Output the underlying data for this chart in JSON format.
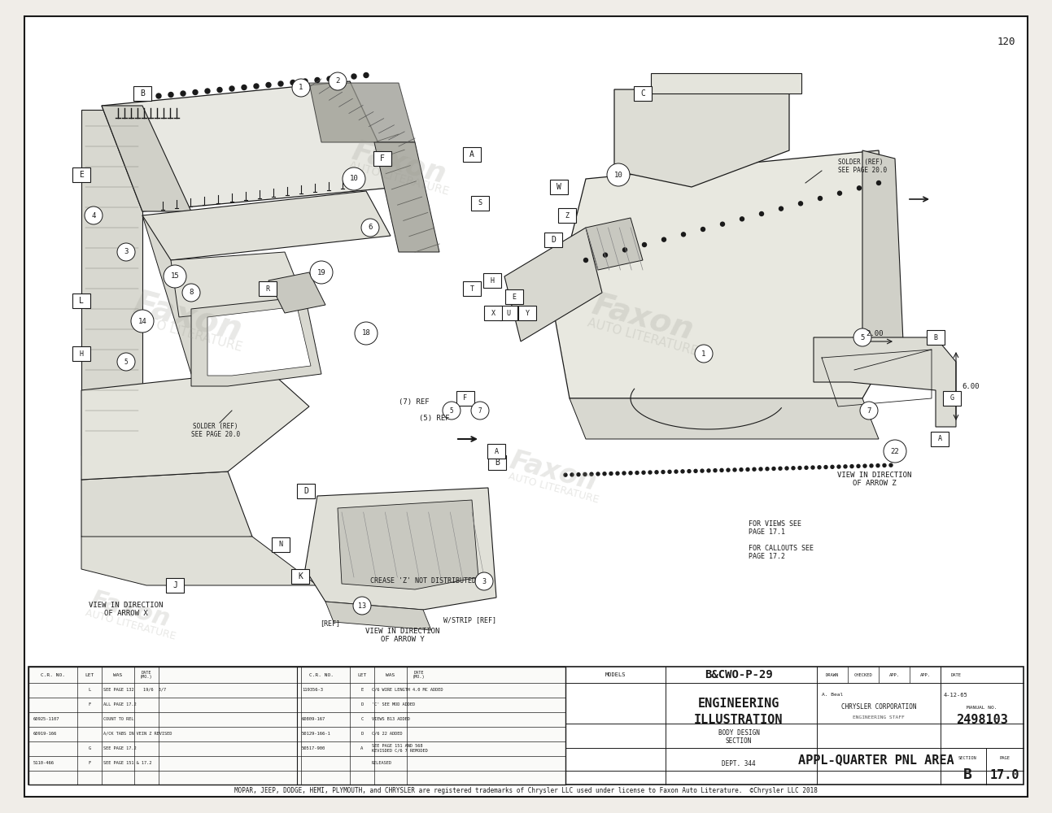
{
  "bg": "#f0ede8",
  "white": "#ffffff",
  "dark": "#1a1a1a",
  "gray": "#888888",
  "light_gray": "#cccccc",
  "mid_gray": "#aaaaaa",
  "page_num": "120",
  "footer": "MOPAR, JEEP, DODGE, HEMI, PLYMOUTH, and CHRYSLER are registered trademarks of Chrysler LLC used under license to Faxon Auto Literature.  ©Chrysler LLC 2018",
  "crease_note": "CREASE 'Z' NOT DISTRIBUTED",
  "models": "B&CWO-P-29",
  "eng_title1": "ENGINEERING",
  "eng_title2": "ILLUSTRATION",
  "company1": "CHRYSLER CORPORATION",
  "company2": "ENGINEERING STAFF",
  "manual_no": "2498103",
  "appl": "APPL-QUARTER PNL AREA",
  "body_design": "BODY DESIGN",
  "section_text": "SECTION",
  "dept": "DEPT. 344",
  "sec_val": "B",
  "page_val": "17.0",
  "date_val": "4-12-65",
  "views_see": "FOR VIEWS SEE\nPAGE 17.1",
  "callouts_see": "FOR CALLOUTS SEE\nPAGE 17.2",
  "solder_ref": "SOLDER (REF)\nSEE PAGE 20.0",
  "view_x": "VIEW IN DIRECTION\nOF ARROW X",
  "view_y": "VIEW IN DIRECTION\nOF ARROW Y",
  "view_z": "VIEW IN DIRECTION\nOF ARROW Z",
  "ref7": "(7) REF",
  "ref5": "(5) REF",
  "ref_label": "[REF]",
  "wstrip": "W/STRIP [REF]",
  "dim200": "2.00",
  "dim600": "6.00",
  "drawn": "DRAWN",
  "checked": "CHECKED",
  "app1": "APP.",
  "app2": "APP.",
  "date_hdr": "DATE",
  "models_hdr": "MODELS",
  "manual_hdr": "MANUAL NO.",
  "section_hdr": "SECTION",
  "page_hdr": "PAGE",
  "drawn_name": "A. Beal"
}
